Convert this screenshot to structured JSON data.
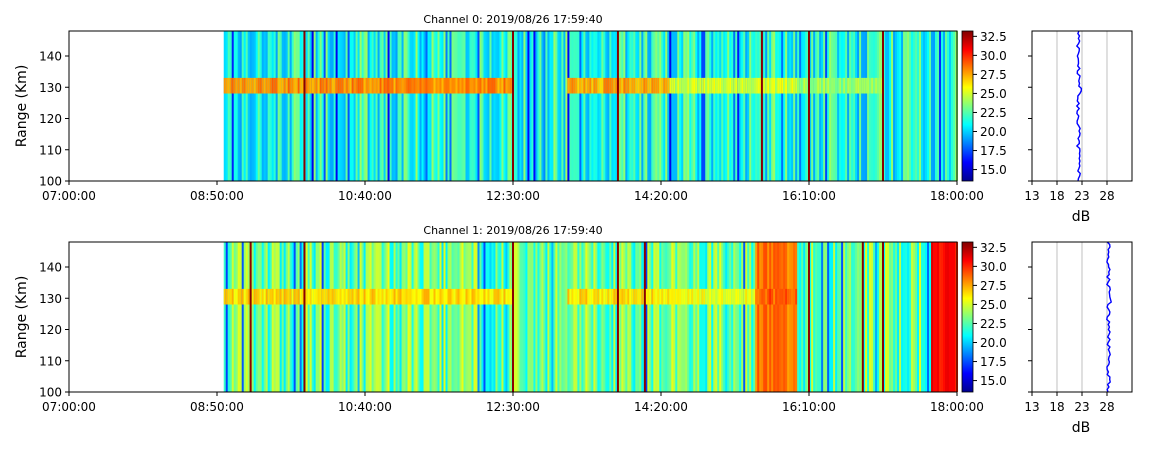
{
  "chart_data": [
    {
      "type": "heatmap",
      "title": "Channel 0: 2019/08/26 17:59:40",
      "ylabel": "Range (Km)",
      "x_tick_labels": [
        "07:00:00",
        "08:50:00",
        "10:40:00",
        "12:30:00",
        "14:20:00",
        "16:10:00",
        "18:00:00"
      ],
      "xlim": [
        "07:00:00",
        "18:00:00"
      ],
      "y_ticks": [
        100,
        110,
        120,
        130,
        140
      ],
      "ylim": [
        100,
        148
      ],
      "colorbar": {
        "ticks": [
          "15.0",
          "17.5",
          "20.0",
          "22.5",
          "25.0",
          "27.5",
          "30.0",
          "32.5"
        ],
        "range": [
          13.5,
          33.2
        ],
        "colormap": "jet"
      },
      "data_start": "08:55:00",
      "baseline_db": 21.5,
      "echo_band_km": [
        128,
        133
      ],
      "echo_segments": [
        {
          "from": "08:55:00",
          "to": "12:30:00",
          "db": 28.0
        },
        {
          "from": "13:10:00",
          "to": "14:25:00",
          "db": 27.5
        },
        {
          "from": "14:25:00",
          "to": "16:00:00",
          "db": 25.0
        },
        {
          "from": "16:00:00",
          "to": "17:05:00",
          "db": 23.8
        }
      ],
      "intense_lines": [
        "09:55:00",
        "12:30:00",
        "13:48:00",
        "15:35:00",
        "16:10:00",
        "17:05:00"
      ],
      "profile": {
        "xlabel": "dB",
        "x_ticks": [
          13,
          18,
          23,
          28
        ],
        "xlim": [
          13,
          33
        ],
        "mean_db": 22.3,
        "line_color": "#0000ff"
      }
    },
    {
      "type": "heatmap",
      "title": "Channel 1: 2019/08/26 17:59:40",
      "ylabel": "Range (Km)",
      "x_tick_labels": [
        "07:00:00",
        "08:50:00",
        "10:40:00",
        "12:30:00",
        "14:20:00",
        "16:10:00",
        "18:00:00"
      ],
      "xlim": [
        "07:00:00",
        "18:00:00"
      ],
      "y_ticks": [
        100,
        110,
        120,
        130,
        140
      ],
      "ylim": [
        100,
        148
      ],
      "colorbar": {
        "ticks": [
          "15.0",
          "17.5",
          "20.0",
          "22.5",
          "25.0",
          "27.5",
          "30.0",
          "32.5"
        ],
        "range": [
          13.5,
          33.2
        ],
        "colormap": "jet"
      },
      "data_start": "08:55:00",
      "baseline_db": 23.0,
      "echo_band_km": [
        128,
        133
      ],
      "echo_segments": [
        {
          "from": "08:55:00",
          "to": "12:30:00",
          "db": 26.5
        },
        {
          "from": "13:10:00",
          "to": "14:25:00",
          "db": 26.5
        },
        {
          "from": "14:25:00",
          "to": "15:30:00",
          "db": 25.5
        },
        {
          "from": "15:30:00",
          "to": "16:00:00",
          "db": 29.0
        }
      ],
      "warm_regions": [
        {
          "from": "15:30:00",
          "to": "16:00:00",
          "db": 28.5
        },
        {
          "from": "17:40:00",
          "to": "18:00:00",
          "db": 31.0
        }
      ],
      "intense_lines": [
        "09:15:00",
        "09:55:00",
        "12:30:00",
        "13:48:00",
        "14:08:00",
        "16:10:00",
        "16:50:00",
        "17:05:00"
      ],
      "profile": {
        "xlabel": "dB",
        "x_ticks": [
          13,
          18,
          23,
          28
        ],
        "xlim": [
          13,
          33
        ],
        "mean_db": 28.3,
        "line_color": "#0000ff"
      }
    }
  ]
}
